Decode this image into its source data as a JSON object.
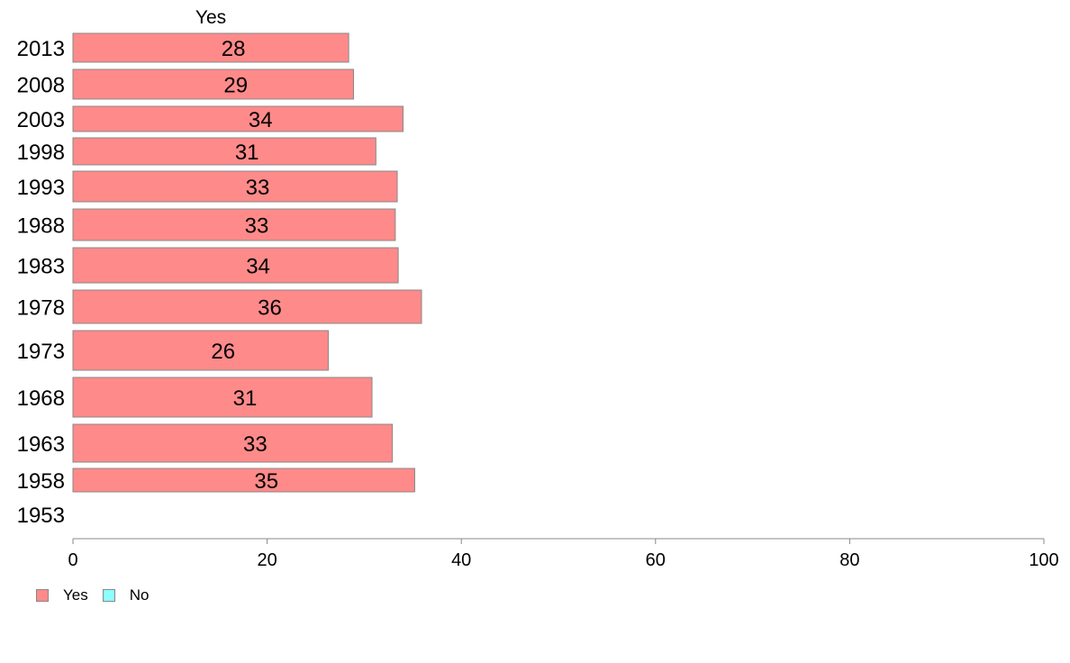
{
  "chart_data": {
    "type": "bar",
    "orientation": "horizontal",
    "title": "",
    "top_label": "Yes",
    "categories": [
      "2013",
      "2008",
      "2003",
      "1998",
      "1993",
      "1988",
      "1983",
      "1978",
      "1973",
      "1968",
      "1963",
      "1958",
      "1953"
    ],
    "series": [
      {
        "name": "Yes",
        "color": "#ff8a8a",
        "values": [
          28.4,
          28.9,
          34.0,
          31.2,
          33.4,
          33.2,
          33.5,
          35.9,
          26.3,
          30.8,
          32.9,
          35.2,
          null
        ],
        "labels": [
          "28",
          "29",
          "34",
          "31",
          "33",
          "33",
          "34",
          "36",
          "26",
          "31",
          "33",
          "35",
          ""
        ]
      },
      {
        "name": "No",
        "color": "#8cffff",
        "values": [
          null,
          null,
          null,
          null,
          null,
          null,
          null,
          null,
          null,
          null,
          null,
          null,
          null
        ]
      }
    ],
    "xlim": [
      0,
      100
    ],
    "xticks": [
      0,
      20,
      40,
      60,
      80,
      100
    ],
    "xlabel": "",
    "ylabel": "",
    "grid": false,
    "legend_position": "bottom-left"
  }
}
